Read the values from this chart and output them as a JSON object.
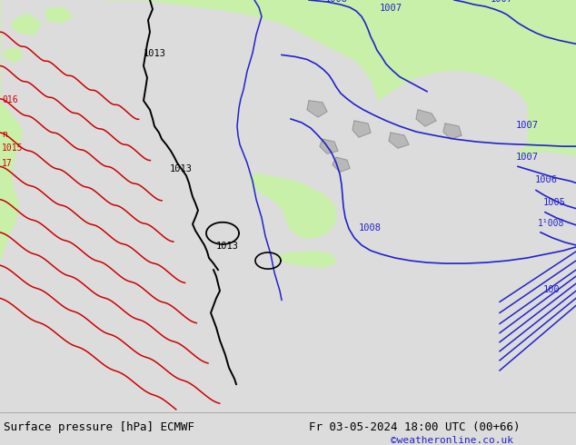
{
  "title_left": "Surface pressure [hPa] ECMWF",
  "title_right": "Fr 03-05-2024 18:00 UTC (00+66)",
  "credit": "©weatheronline.co.uk",
  "bg_color": "#dcdcdc",
  "land_green_color": "#c8f0a8",
  "sea_gray_color": "#c8c8c8",
  "blue_isobar_color": "#2222cc",
  "black_isobar_color": "#000000",
  "red_isobar_color": "#cc0000",
  "bottom_bar_color": "#e8e8e8",
  "figsize": [
    6.34,
    4.9
  ],
  "dpi": 100
}
